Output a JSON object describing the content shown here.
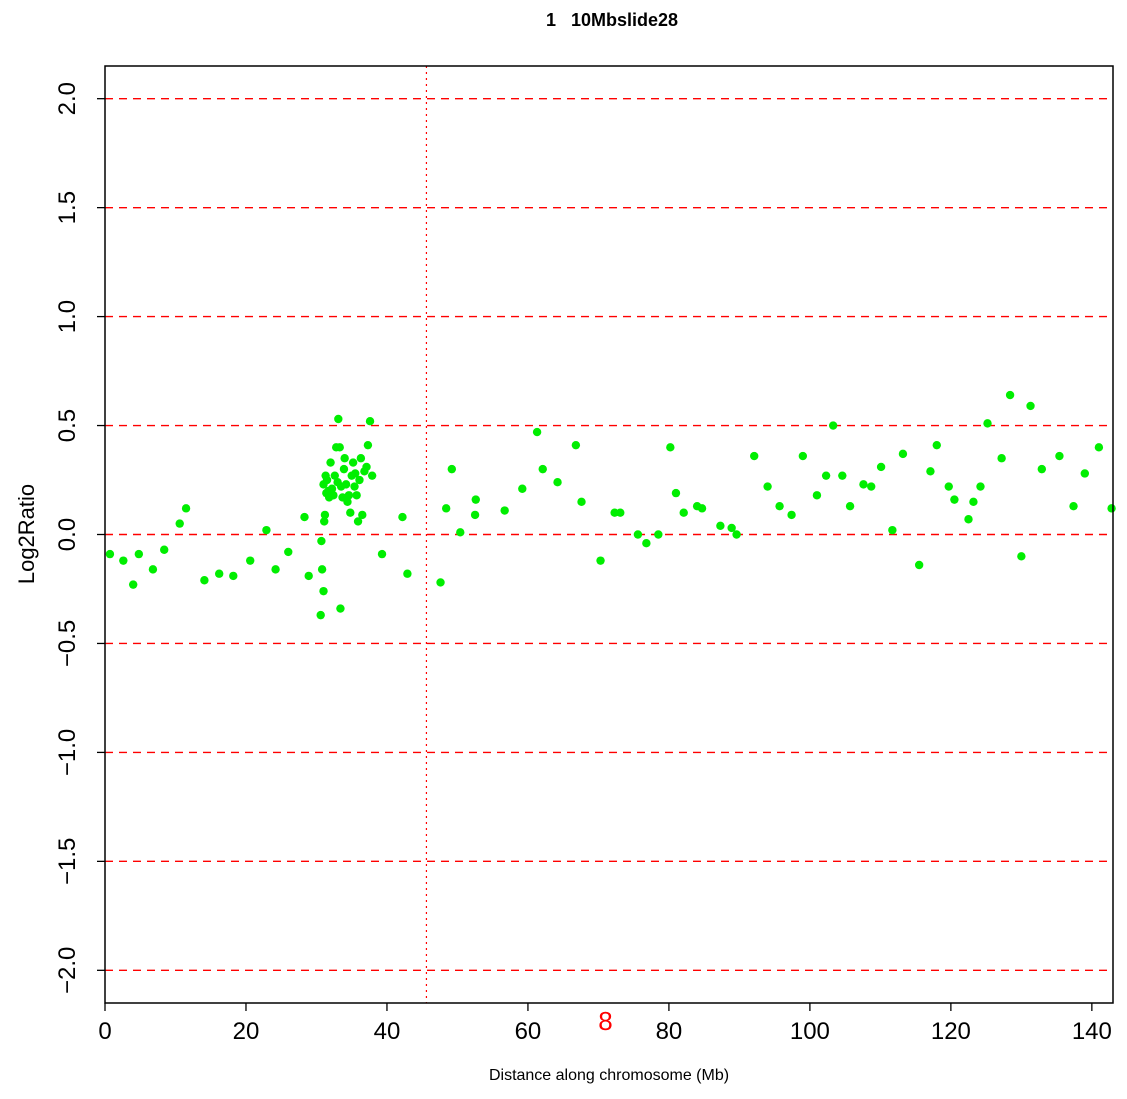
{
  "chart_data": {
    "type": "scatter",
    "title": "1   10Mbslide28",
    "xlabel": "Distance along chromosome (Mb)",
    "ylabel": "Log2Ratio",
    "xlim": [
      0,
      143
    ],
    "ylim": [
      -2.15,
      2.15
    ],
    "x_ticks": [
      0,
      20,
      40,
      60,
      80,
      100,
      120,
      140
    ],
    "y_ticks": [
      -2.0,
      -1.5,
      -1.0,
      -0.5,
      0.0,
      0.5,
      1.0,
      1.5,
      2.0
    ],
    "y_tick_labels": [
      "−2.0",
      "−1.5",
      "−1.0",
      "−0.5",
      "0.0",
      "0.5",
      "1.0",
      "1.5",
      "2.0"
    ],
    "reference_lines_y": [
      -2.0,
      -1.5,
      -1.0,
      -0.5,
      0.0,
      0.5,
      1.0,
      1.5,
      2.0
    ],
    "reference_line_color": "#ff0000",
    "centromere_x": 45.6,
    "centromere_color": "#ff0000",
    "annotation": {
      "text": "8",
      "x": 71,
      "color": "#ff0000"
    },
    "point_color": "#00ee00",
    "grid": false,
    "series": [
      {
        "x": [
          0.7,
          2.6,
          4.0,
          4.8,
          6.8,
          8.4,
          10.6,
          11.5,
          14.1,
          16.2,
          18.2,
          20.6,
          22.9,
          24.2,
          26.0,
          28.3,
          28.9,
          30.6,
          30.7,
          30.8,
          31.0,
          31.0,
          31.1,
          31.2,
          31.3,
          31.4,
          31.5,
          31.7,
          31.8,
          32.0,
          32.2,
          32.4,
          32.6,
          32.8,
          33.0,
          33.1,
          33.3,
          33.4,
          33.5,
          33.7,
          33.9,
          34.0,
          34.2,
          34.4,
          34.6,
          34.8,
          35.0,
          35.2,
          35.4,
          35.5,
          35.7,
          35.9,
          36.1,
          36.3,
          36.5,
          36.8,
          37.1,
          37.3,
          37.6,
          37.9,
          39.3,
          42.2,
          42.9,
          47.6,
          48.4,
          49.2,
          50.4,
          52.5,
          52.6,
          56.7,
          59.2,
          61.3,
          62.1,
          64.2,
          66.8,
          67.6,
          72.3,
          73.1,
          70.3,
          75.6,
          76.8,
          78.5,
          80.2,
          81.0,
          82.1,
          84.0,
          84.7,
          87.3,
          88.9,
          89.6,
          92.1,
          94.0,
          95.7,
          97.4,
          99.0,
          101.0,
          102.3,
          103.3,
          104.6,
          105.7,
          107.6,
          108.7,
          110.1,
          111.7,
          113.2,
          115.5,
          117.1,
          118.0,
          119.7,
          120.5,
          122.5,
          123.2,
          124.2,
          125.2,
          127.2,
          128.4,
          130.0,
          131.3,
          132.9,
          135.4,
          137.4,
          139.0,
          141.0,
          142.8
        ],
        "y": [
          -0.09,
          -0.12,
          -0.23,
          -0.09,
          -0.16,
          -0.07,
          0.05,
          0.12,
          -0.21,
          -0.18,
          -0.19,
          -0.12,
          0.02,
          -0.16,
          -0.08,
          0.08,
          -0.19,
          -0.37,
          -0.03,
          -0.16,
          -0.26,
          0.23,
          0.06,
          0.09,
          0.27,
          0.19,
          0.25,
          0.2,
          0.17,
          0.33,
          0.21,
          0.18,
          0.27,
          0.4,
          0.24,
          0.53,
          0.4,
          -0.34,
          0.22,
          0.17,
          0.3,
          0.35,
          0.23,
          0.15,
          0.18,
          0.1,
          0.27,
          0.33,
          0.22,
          0.28,
          0.18,
          0.06,
          0.25,
          0.35,
          0.09,
          0.29,
          0.31,
          0.41,
          0.52,
          0.27,
          -0.09,
          0.08,
          -0.18,
          -0.22,
          0.12,
          0.3,
          0.01,
          0.09,
          0.16,
          0.11,
          0.21,
          0.47,
          0.3,
          0.24,
          0.41,
          0.15,
          0.1,
          0.1,
          -0.12,
          0.0,
          -0.04,
          0.0,
          0.4,
          0.19,
          0.1,
          0.13,
          0.12,
          0.04,
          0.03,
          0.0,
          0.36,
          0.22,
          0.13,
          0.09,
          0.36,
          0.18,
          0.27,
          0.5,
          0.27,
          0.13,
          0.23,
          0.22,
          0.31,
          0.02,
          0.37,
          -0.14,
          0.29,
          0.41,
          0.22,
          0.16,
          0.07,
          0.15,
          0.22,
          0.51,
          0.35,
          0.64,
          -0.1,
          0.59,
          0.3,
          0.36,
          0.13,
          0.28,
          0.4,
          0.12
        ]
      }
    ]
  }
}
